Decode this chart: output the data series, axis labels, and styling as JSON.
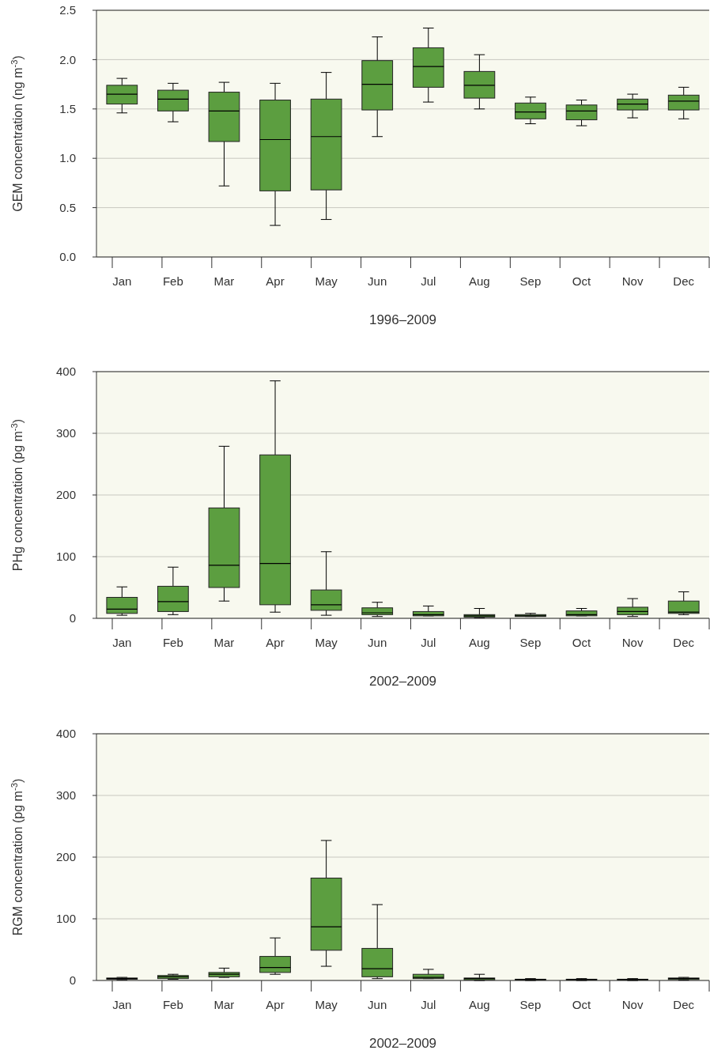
{
  "chart_data": [
    {
      "type": "box",
      "ylabel": "GEM concentration (ng m$^{-3}$)",
      "xlabel": "1996–2009",
      "color": "#5c9e40",
      "grid": "y",
      "categories": [
        "Jan",
        "Feb",
        "Mar",
        "Apr",
        "May",
        "Jun",
        "Jul",
        "Aug",
        "Sep",
        "Oct",
        "Nov",
        "Dec"
      ],
      "ylim": [
        0,
        2.5
      ],
      "yticks": [
        {
          "value": 0,
          "label": "0.0"
        },
        0.5,
        {
          "value": 1,
          "label": "1.0"
        },
        1.5,
        {
          "value": 2,
          "label": "2.0"
        },
        2.5
      ],
      "boxes": [
        {
          "low": 1.46,
          "q1": 1.55,
          "median": 1.65,
          "q3": 1.74,
          "high": 1.81
        },
        {
          "low": 1.37,
          "q1": 1.48,
          "median": 1.6,
          "q3": 1.69,
          "high": 1.76
        },
        {
          "low": 0.72,
          "q1": 1.17,
          "median": 1.48,
          "q3": 1.67,
          "high": 1.77
        },
        {
          "low": 0.32,
          "q1": 0.67,
          "median": 1.19,
          "q3": 1.59,
          "high": 1.76
        },
        {
          "low": 0.38,
          "q1": 0.68,
          "median": 1.22,
          "q3": 1.6,
          "high": 1.87
        },
        {
          "low": 1.22,
          "q1": 1.49,
          "median": 1.75,
          "q3": 1.99,
          "high": 2.23
        },
        {
          "low": 1.57,
          "q1": 1.72,
          "median": 1.93,
          "q3": 2.12,
          "high": 2.32
        },
        {
          "low": 1.5,
          "q1": 1.61,
          "median": 1.74,
          "q3": 1.88,
          "high": 2.05
        },
        {
          "low": 1.35,
          "q1": 1.4,
          "median": 1.47,
          "q3": 1.56,
          "high": 1.62
        },
        {
          "low": 1.33,
          "q1": 1.39,
          "median": 1.48,
          "q3": 1.54,
          "high": 1.59
        },
        {
          "low": 1.41,
          "q1": 1.49,
          "median": 1.55,
          "q3": 1.6,
          "high": 1.65
        },
        {
          "low": 1.4,
          "q1": 1.49,
          "median": 1.58,
          "q3": 1.64,
          "high": 1.72
        }
      ]
    },
    {
      "type": "box",
      "ylabel": "PHg concentration (pg m$^{-3}$)",
      "xlabel": "2002–2009",
      "color": "#5c9e40",
      "grid": "y",
      "categories": [
        "Jan",
        "Feb",
        "Mar",
        "Apr",
        "May",
        "Jun",
        "Jul",
        "Aug",
        "Sep",
        "Oct",
        "Nov",
        "Dec"
      ],
      "ylim": [
        0,
        400
      ],
      "yticks": [
        0,
        100,
        200,
        300,
        400
      ],
      "boxes": [
        {
          "low": 5,
          "q1": 8,
          "median": 15,
          "q3": 34,
          "high": 51
        },
        {
          "low": 6,
          "q1": 11,
          "median": 27,
          "q3": 52,
          "high": 83
        },
        {
          "low": 28,
          "q1": 50,
          "median": 86,
          "q3": 179,
          "high": 279
        },
        {
          "low": 10,
          "q1": 22,
          "median": 89,
          "q3": 265,
          "high": 385
        },
        {
          "low": 5,
          "q1": 13,
          "median": 22,
          "q3": 46,
          "high": 108
        },
        {
          "low": 3,
          "q1": 6,
          "median": 9,
          "q3": 17,
          "high": 26
        },
        {
          "low": 4,
          "q1": 4,
          "median": 6,
          "q3": 11,
          "high": 20
        },
        {
          "low": 1,
          "q1": 2,
          "median": 4,
          "q3": 6,
          "high": 16
        },
        {
          "low": 3,
          "q1": 3,
          "median": 4,
          "q3": 6,
          "high": 8
        },
        {
          "low": 4,
          "q1": 4,
          "median": 6,
          "q3": 12,
          "high": 16
        },
        {
          "low": 3,
          "q1": 6,
          "median": 11,
          "q3": 18,
          "high": 32
        },
        {
          "low": 6,
          "q1": 8,
          "median": 10,
          "q3": 28,
          "high": 43
        }
      ]
    },
    {
      "type": "box",
      "ylabel": "RGM concentration (pg m$^{-3}$)",
      "xlabel": "2002–2009",
      "color": "#5c9e40",
      "grid": "y",
      "categories": [
        "Jan",
        "Feb",
        "Mar",
        "Apr",
        "May",
        "Jun",
        "Jul",
        "Aug",
        "Sep",
        "Oct",
        "Nov",
        "Dec"
      ],
      "ylim": [
        0,
        400
      ],
      "yticks": [
        0,
        100,
        200,
        300,
        400
      ],
      "boxes": [
        {
          "low": 1,
          "q1": 2,
          "median": 3,
          "q3": 4,
          "high": 5
        },
        {
          "low": 2,
          "q1": 3,
          "median": 6,
          "q3": 8,
          "high": 10
        },
        {
          "low": 5,
          "q1": 6,
          "median": 10,
          "q3": 13,
          "high": 20
        },
        {
          "low": 10,
          "q1": 13,
          "median": 21,
          "q3": 39,
          "high": 69
        },
        {
          "low": 23,
          "q1": 49,
          "median": 87,
          "q3": 166,
          "high": 227
        },
        {
          "low": 3,
          "q1": 6,
          "median": 19,
          "q3": 52,
          "high": 123
        },
        {
          "low": 3,
          "q1": 3,
          "median": 5,
          "q3": 10,
          "high": 18
        },
        {
          "low": 0,
          "q1": 1,
          "median": 3,
          "q3": 4,
          "high": 10
        },
        {
          "low": 0,
          "q1": 1,
          "median": 1.5,
          "q3": 2,
          "high": 3
        },
        {
          "low": 0,
          "q1": 1,
          "median": 1.5,
          "q3": 2,
          "high": 3
        },
        {
          "low": 0,
          "q1": 1,
          "median": 1.5,
          "q3": 2,
          "high": 3
        },
        {
          "low": 0.5,
          "q1": 1.5,
          "median": 3,
          "q3": 4,
          "high": 5
        }
      ]
    }
  ]
}
